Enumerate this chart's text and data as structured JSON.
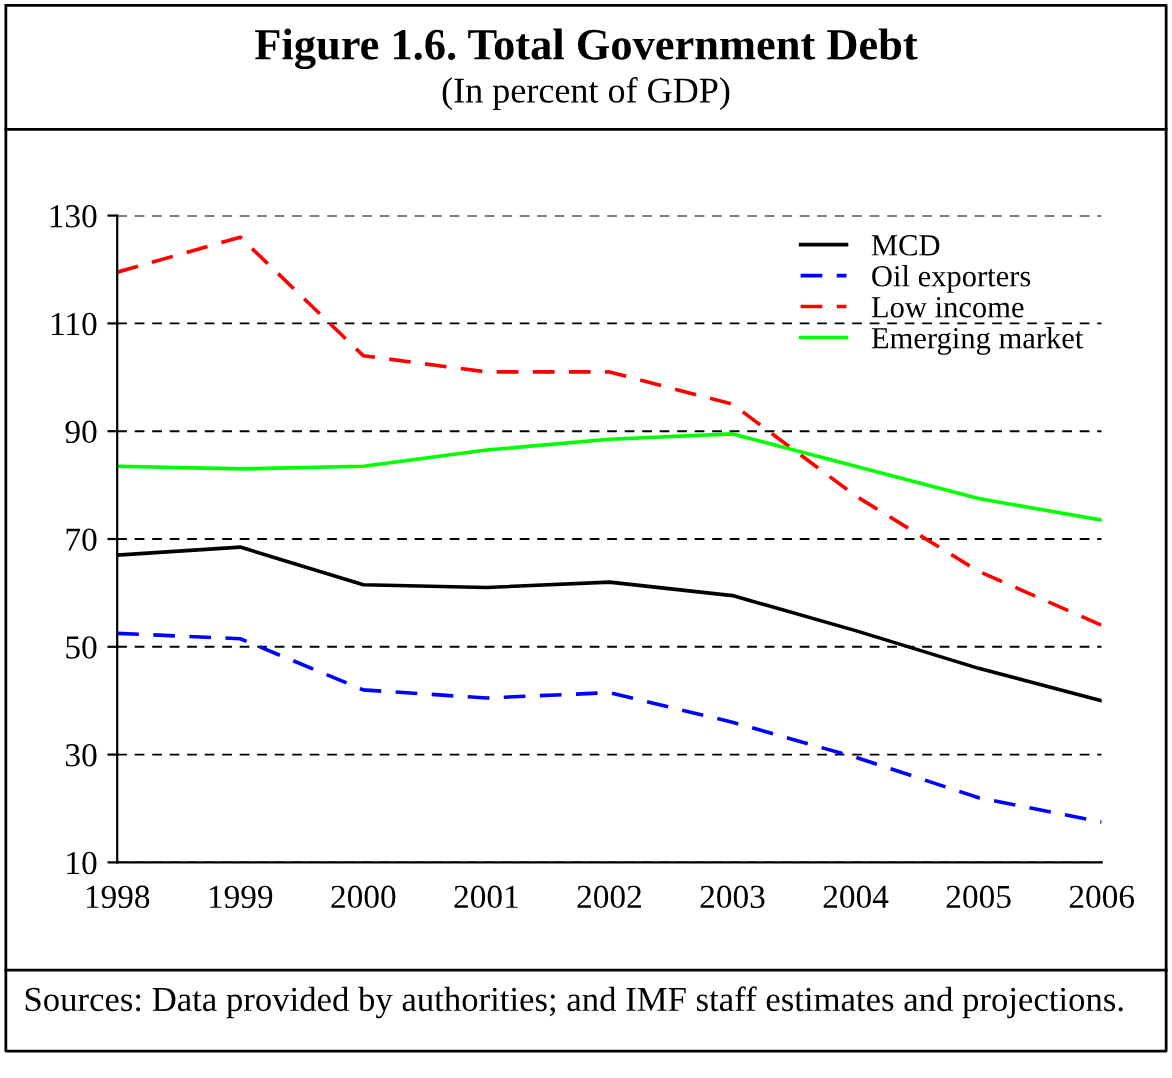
{
  "chart_data": {
    "type": "line",
    "title": "Figure 1.6. Total Government Debt",
    "subtitle": "(In percent of GDP)",
    "categories": [
      "1998",
      "1999",
      "2000",
      "2001",
      "2002",
      "2003",
      "2004",
      "2005",
      "2006"
    ],
    "series": [
      {
        "name": "MCD",
        "color": "#000000",
        "line_style": "solid",
        "values": [
          67,
          68.5,
          61.5,
          61,
          62,
          59.5,
          53,
          46,
          40
        ]
      },
      {
        "name": "Oil exporters",
        "color": "#0000ff",
        "line_style": "dashed",
        "values": [
          52.5,
          51.5,
          42,
          40.5,
          41.5,
          36,
          29.5,
          22,
          17.5
        ]
      },
      {
        "name": "Low income",
        "color": "#ff0000",
        "line_style": "dashed",
        "values": [
          119.5,
          126,
          104,
          101,
          101,
          95,
          78,
          64,
          54
        ]
      },
      {
        "name": "Emerging market",
        "color": "#00ff00",
        "line_style": "solid",
        "values": [
          83.5,
          83,
          83.5,
          86.5,
          88.5,
          89.5,
          83.5,
          77.5,
          73.5
        ]
      }
    ],
    "ylim": [
      10,
      130
    ],
    "yticks": [
      10,
      30,
      50,
      70,
      90,
      110,
      130
    ],
    "grid": "y",
    "legend": "top right",
    "marker": "none",
    "annotations": [
      "Sources: Data provided by authorities; and IMF staff estimates and projections."
    ]
  }
}
